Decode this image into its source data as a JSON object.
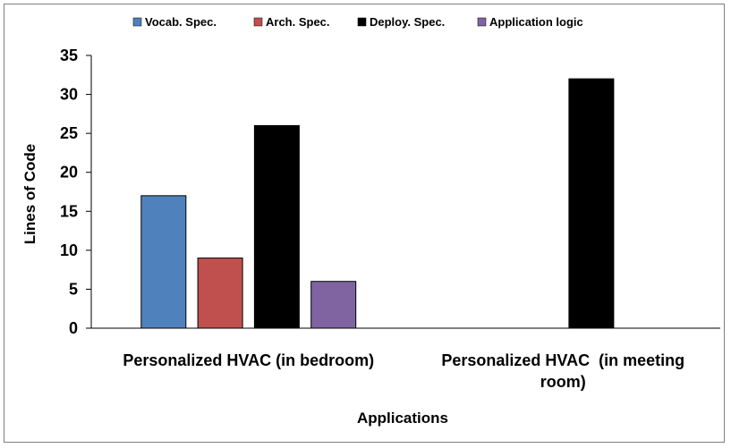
{
  "chart_data": {
    "type": "bar",
    "categories": [
      [
        "Personalized HVAC (in bedroom)"
      ],
      [
        "Personalized HVAC  (in meeting",
        "room)"
      ]
    ],
    "series": [
      {
        "name": "Vocab. Spec.",
        "color": "#4f81bd",
        "values": [
          17,
          0
        ]
      },
      {
        "name": "Arch. Spec.",
        "color": "#c0504d",
        "values": [
          9,
          0
        ]
      },
      {
        "name": "Deploy. Spec.",
        "color": "#000000",
        "values": [
          26,
          32
        ]
      },
      {
        "name": "Application logic",
        "color": "#8064a2",
        "values": [
          6,
          0
        ]
      }
    ],
    "xlabel": "Applications",
    "ylabel": "Lines of Code",
    "ylim": [
      0,
      35
    ],
    "yticks": [
      0,
      5,
      10,
      15,
      20,
      25,
      30,
      35
    ],
    "grid": false,
    "legend_position": "top"
  }
}
